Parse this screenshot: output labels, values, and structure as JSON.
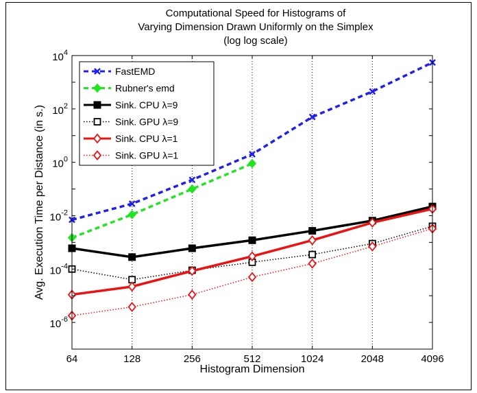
{
  "chart_data": {
    "type": "line",
    "title": [
      "Computational Speed for Histograms of",
      "Varying Dimension Drawn Uniformly on the Simplex",
      "(log log scale)"
    ],
    "xlabel": "Histogram Dimension",
    "ylabel": "Avg. Execution Time per Distance (in s.)",
    "x_scale": "log2",
    "y_scale": "log10",
    "x": [
      64,
      128,
      256,
      512,
      1024,
      2048,
      4096
    ],
    "x_tick_labels": [
      "64",
      "128",
      "256",
      "512",
      "1024",
      "2048",
      "4096"
    ],
    "xlim": [
      64,
      4096
    ],
    "ylim": [
      1e-07,
      10000
    ],
    "y_ticks": [
      {
        "value": 1e-06,
        "base": "10",
        "exp": "-6"
      },
      {
        "value": 0.0001,
        "base": "10",
        "exp": "-4"
      },
      {
        "value": 0.01,
        "base": "10",
        "exp": "-2"
      },
      {
        "value": 1,
        "base": "10",
        "exp": "0"
      },
      {
        "value": 100,
        "base": "10",
        "exp": "2"
      },
      {
        "value": 10000,
        "base": "10",
        "exp": "4"
      }
    ],
    "grid": "vertical dotted",
    "legend_position": "top-left",
    "series": [
      {
        "name": "FastEMD",
        "color": "#1f1fef",
        "line": "dashed",
        "marker": "x",
        "values": [
          0.007,
          0.028,
          0.22,
          2,
          50,
          450,
          5500
        ]
      },
      {
        "name": "Rubner's emd",
        "color": "#22e522",
        "line": "dashed",
        "marker": "diamond-filled",
        "values": [
          0.0015,
          0.011,
          0.1,
          0.9,
          null,
          null,
          null
        ]
      },
      {
        "name": "Sink. CPU λ=9",
        "color": "#000000",
        "line": "solid",
        "marker": "square-filled",
        "values": [
          0.0006,
          0.00028,
          0.0006,
          0.0012,
          0.0027,
          0.0065,
          0.022
        ]
      },
      {
        "name": "Sink. GPU λ=9",
        "color": "#000000",
        "line": "dotted",
        "marker": "square-open",
        "values": [
          0.0001,
          4e-05,
          9e-05,
          0.00018,
          0.00035,
          0.0009,
          0.004
        ]
      },
      {
        "name": "Sink. CPU λ=1",
        "color": "#ee1111",
        "line": "solid",
        "marker": "diamond-open",
        "values": [
          1.1e-05,
          2.2e-05,
          8.5e-05,
          0.0003,
          0.0012,
          0.0055,
          0.018
        ]
      },
      {
        "name": "Sink. GPU λ=1",
        "color": "#ee1111",
        "line": "dotted",
        "marker": "diamond-open",
        "values": [
          1.8e-06,
          3.8e-06,
          1.1e-05,
          5e-05,
          0.00016,
          0.0007,
          0.0033
        ]
      }
    ]
  }
}
